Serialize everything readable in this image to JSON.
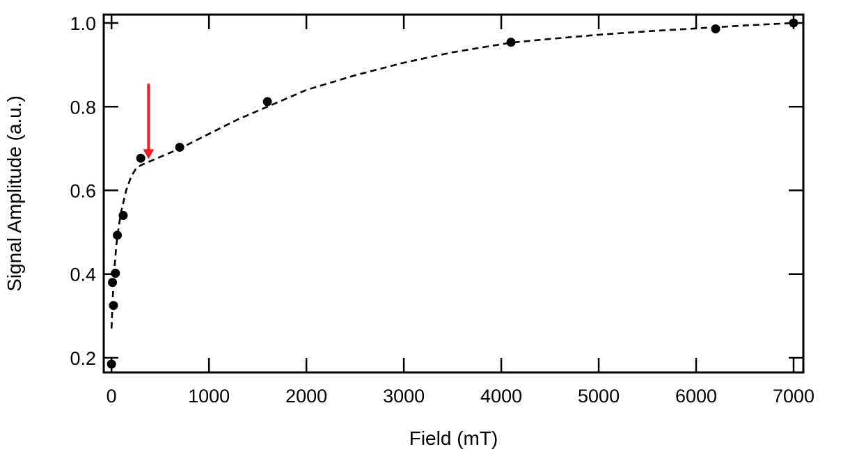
{
  "chart_data": {
    "type": "scatter",
    "title": "",
    "xlabel": "Field (mT)",
    "ylabel": "Signal Amplitude (a.u.)",
    "xlim": [
      -80,
      7100
    ],
    "ylim": [
      0.165,
      1.02
    ],
    "xticks": [
      0,
      1000,
      2000,
      3000,
      4000,
      5000,
      6000,
      7000
    ],
    "yticks": [
      0.2,
      0.4,
      0.6,
      0.8,
      1.0
    ],
    "xtick_labels": [
      "0",
      "1000",
      "2000",
      "3000",
      "4000",
      "5000",
      "6000",
      "7000"
    ],
    "ytick_labels": [
      "0.2",
      "0.4",
      "0.6",
      "0.8",
      "1.0"
    ],
    "grid": false,
    "legend": "none",
    "series": [
      {
        "style": "markers",
        "color": "#000000",
        "x": [
          0,
          10,
          20,
          40,
          60,
          120,
          300,
          700,
          1600,
          4100,
          6200,
          7000
        ],
        "y": [
          0.185,
          0.38,
          0.325,
          0.402,
          0.493,
          0.54,
          0.677,
          0.703,
          0.812,
          0.954,
          0.986,
          1.0
        ]
      },
      {
        "style": "dashed-line",
        "color": "#000000",
        "x": [
          0,
          10,
          25,
          50,
          75,
          100,
          150,
          200,
          250,
          300,
          400,
          500,
          700,
          1000,
          1300,
          1600,
          2000,
          2500,
          3000,
          3500,
          4100,
          4500,
          5000,
          5500,
          6000,
          6500,
          7000
        ],
        "y": [
          0.27,
          0.33,
          0.4,
          0.47,
          0.515,
          0.55,
          0.6,
          0.632,
          0.652,
          0.66,
          0.67,
          0.68,
          0.7,
          0.735,
          0.77,
          0.8,
          0.84,
          0.875,
          0.905,
          0.93,
          0.953,
          0.962,
          0.972,
          0.98,
          0.987,
          0.994,
          1.0
        ]
      }
    ],
    "annotations": [
      {
        "type": "arrow",
        "color": "#ee1c25",
        "x": 380,
        "y_from": 0.855,
        "y_to": 0.675
      }
    ]
  }
}
